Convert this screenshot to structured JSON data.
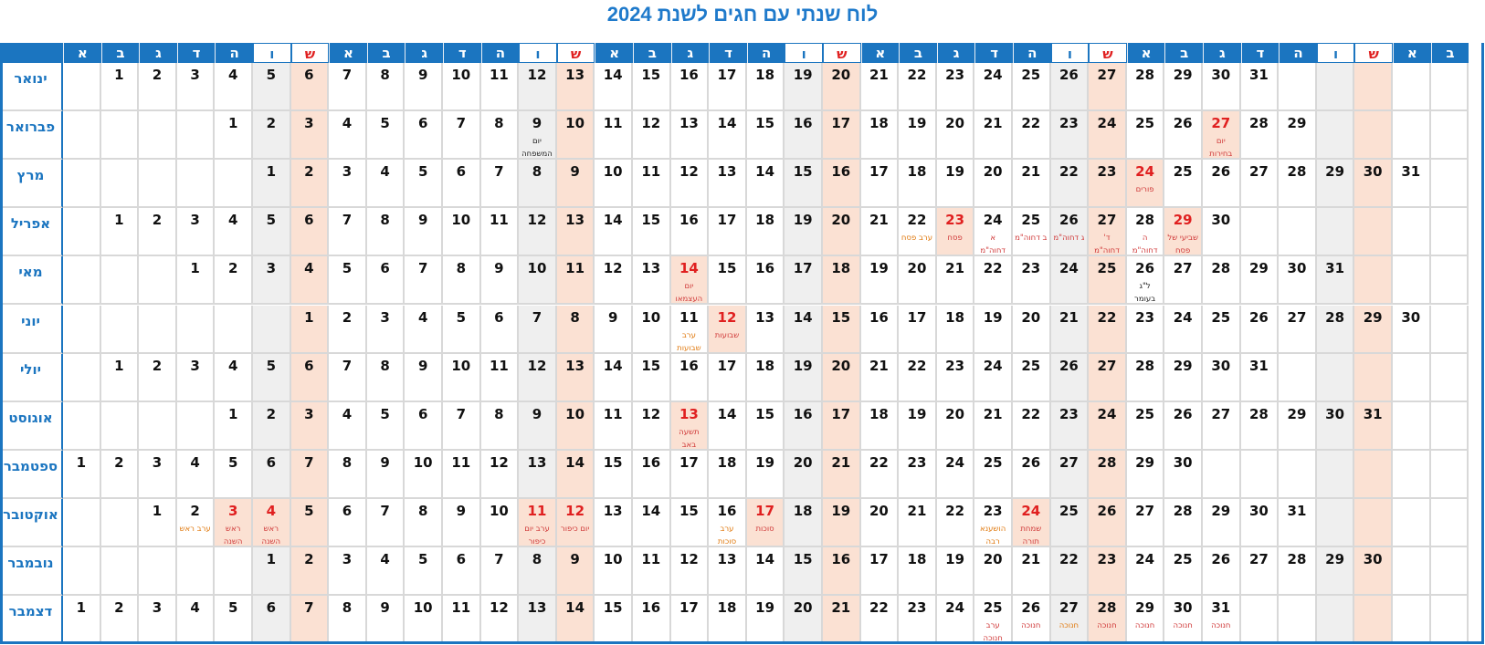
{
  "title": "לוח שנתי עם חגים לשנת 2024",
  "weekday_header": [
    "א",
    "ב",
    "ג",
    "ד",
    "ה",
    "ו",
    "ש",
    "א",
    "ב",
    "ג",
    "ד",
    "ה",
    "ו",
    "ש",
    "א",
    "ב",
    "ג",
    "ד",
    "ה",
    "ו",
    "ש",
    "א",
    "ב",
    "ג",
    "ד",
    "ה",
    "ו",
    "ש",
    "א",
    "ב",
    "ג",
    "ד",
    "ה",
    "ו",
    "ש",
    "א",
    "ב"
  ],
  "colors": {
    "brand_blue": "#1b75c0",
    "title_blue": "#1f7acb",
    "saturday_fill": "#fbe1d3",
    "friday_fill": "#efefef",
    "holiday_red": "#e02020",
    "eve_orange": "#e07a10"
  },
  "months": [
    {
      "name": "ינואר",
      "start": 1,
      "days": 31,
      "events": []
    },
    {
      "name": "פברואר",
      "start": 4,
      "days": 29,
      "events": [
        {
          "day": 9,
          "label": "יום המשפחה",
          "style": "dark"
        },
        {
          "day": 27,
          "label": "יום בחירות",
          "style": "red",
          "highlight": true
        }
      ]
    },
    {
      "name": "מרץ",
      "start": 5,
      "days": 31,
      "events": [
        {
          "day": 24,
          "label": "פורים",
          "style": "red",
          "highlight": true
        }
      ]
    },
    {
      "name": "אפריל",
      "start": 1,
      "days": 30,
      "events": [
        {
          "day": 22,
          "label": "ערב פסח",
          "style": "orange"
        },
        {
          "day": 23,
          "label": "פסח",
          "style": "red",
          "highlight": true
        },
        {
          "day": 24,
          "label": "א דחוה\"מ",
          "style": "red"
        },
        {
          "day": 25,
          "label": "ב דחוה\"מ",
          "style": "red"
        },
        {
          "day": 26,
          "label": "ג דחוה\"מ",
          "style": "red"
        },
        {
          "day": 27,
          "label": "ד' דחוה\"מ",
          "style": "red"
        },
        {
          "day": 28,
          "label": "ה דחוה\"מ",
          "style": "red"
        },
        {
          "day": 29,
          "label": "שביעי של פסח",
          "style": "red",
          "highlight": true
        }
      ]
    },
    {
      "name": "מאי",
      "start": 3,
      "days": 31,
      "events": [
        {
          "day": 14,
          "label": "יום העצמאו",
          "style": "red",
          "highlight": true
        },
        {
          "day": 26,
          "label": "ל\"ג בעומר",
          "style": "dark"
        }
      ]
    },
    {
      "name": "יוני",
      "start": 6,
      "days": 30,
      "events": [
        {
          "day": 11,
          "label": "ערב שבועות",
          "style": "orange"
        },
        {
          "day": 12,
          "label": "שבועות",
          "style": "red",
          "highlight": true
        }
      ]
    },
    {
      "name": "יולי",
      "start": 1,
      "days": 31,
      "events": []
    },
    {
      "name": "אוגוסט",
      "start": 4,
      "days": 31,
      "events": [
        {
          "day": 13,
          "label": "תשעה באב",
          "style": "red",
          "highlight": true
        }
      ]
    },
    {
      "name": "ספטמבר",
      "start": 0,
      "days": 30,
      "events": []
    },
    {
      "name": "אוקטובר",
      "start": 2,
      "days": 31,
      "events": [
        {
          "day": 2,
          "label": "ערב ראש",
          "style": "orange"
        },
        {
          "day": 3,
          "label": "ראש השנה",
          "style": "red",
          "highlight": true
        },
        {
          "day": 4,
          "label": "ראש השנה",
          "style": "red",
          "highlight": true
        },
        {
          "day": 11,
          "label": "ערב יום כיפור",
          "style": "red",
          "highlight": true
        },
        {
          "day": 12,
          "label": "יום כיפור",
          "style": "red",
          "highlight": true
        },
        {
          "day": 16,
          "label": "ערב סוכות",
          "style": "orange"
        },
        {
          "day": 17,
          "label": "סוכות",
          "style": "red",
          "highlight": true
        },
        {
          "day": 23,
          "label": "הושענא רבה",
          "style": "orange"
        },
        {
          "day": 24,
          "label": "שמחת תורה",
          "style": "red",
          "highlight": true
        }
      ]
    },
    {
      "name": "נובמבר",
      "start": 5,
      "days": 30,
      "events": []
    },
    {
      "name": "דצמבר",
      "start": 0,
      "days": 31,
      "events": [
        {
          "day": 25,
          "label": "ערב חנוכה",
          "style": "red"
        },
        {
          "day": 26,
          "label": "חנוכה",
          "style": "red"
        },
        {
          "day": 27,
          "label": "חנוכה",
          "style": "orange"
        },
        {
          "day": 28,
          "label": "חנוכה",
          "style": "red"
        },
        {
          "day": 29,
          "label": "חנוכה",
          "style": "red"
        },
        {
          "day": 30,
          "label": "חנוכה",
          "style": "red"
        },
        {
          "day": 31,
          "label": "חנוכה",
          "style": "red"
        }
      ]
    }
  ]
}
